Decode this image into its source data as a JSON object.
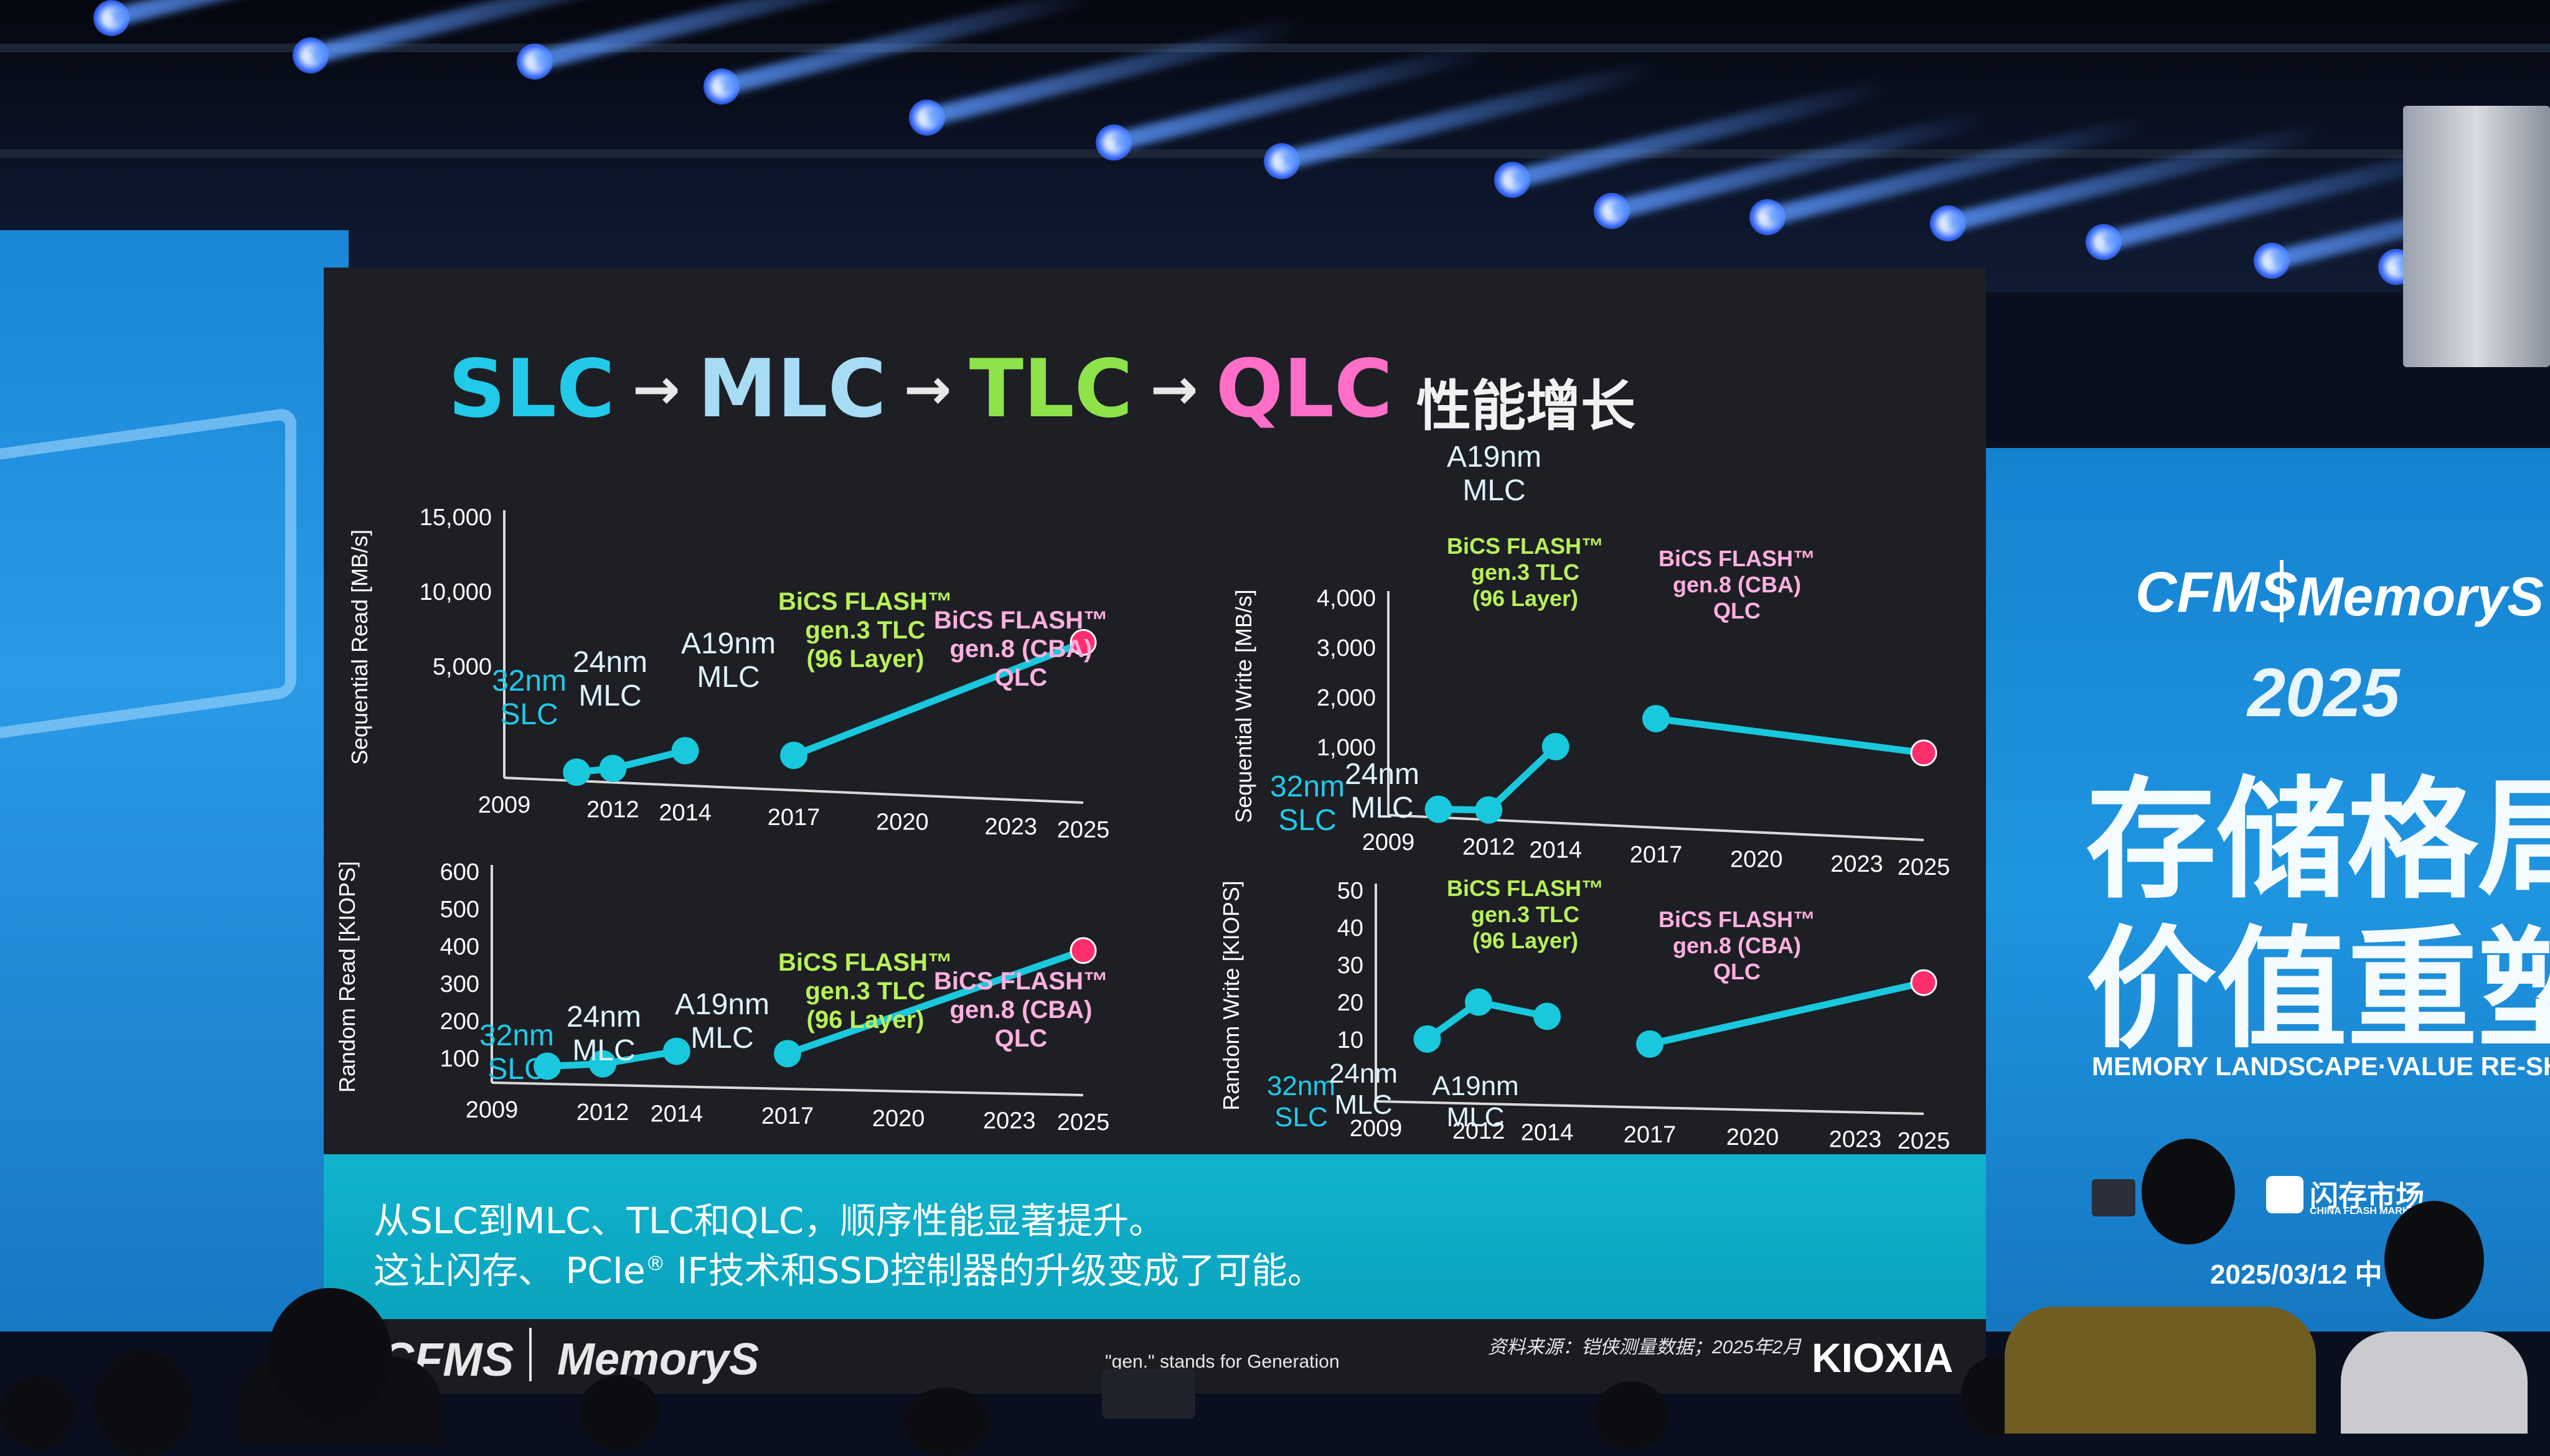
{
  "slide": {
    "title": {
      "steps": [
        {
          "label": "SLC",
          "color": "#22c9e8"
        },
        {
          "label": "MLC",
          "color": "#a8dcf5"
        },
        {
          "label": "TLC",
          "color": "#8ee34a"
        },
        {
          "label": "QLC",
          "color": "#ff6ec7"
        }
      ],
      "arrow": "→",
      "suffix": "性能增长"
    },
    "caption": {
      "line1": "从SLC到MLC、TLC和QLC，顺序性能显著提升。",
      "line2_a": "这让闪存、 PCIe",
      "line2_sup": "®",
      "line2_b": " IF技术和SSD控制器的升级变成了可能。"
    },
    "footer": {
      "cfms_logo": "CFMS",
      "memorys_logo": "MemoryS",
      "gen_note": "\"gen.\" stands for Generation",
      "source": "资料来源：铠侠测量数据；2025年2月",
      "kioxia": "KIOXIA"
    }
  },
  "right_screen": {
    "cfms": "CFMS",
    "memorys": "MemoryS",
    "year": "2025",
    "headline1": "存储格局",
    "headline2": "价值重塑",
    "subtitle": "MEMORY LANDSCAPE·VALUE RE-SHA",
    "brand_cn": "闪存市场",
    "brand_en": "CHINA FLASH MARKET",
    "date": "2025/03/12  中"
  },
  "colors": {
    "line": "#19c8dc",
    "endpoint": "#ff2f6e",
    "tlc_annotation": "#b8f05a",
    "qlc_annotation": "#ffb0e0",
    "slc_annotation": "#22c9e8",
    "mlc_annotation": "#dff3ff",
    "caption_bg": "#0aa7c2"
  },
  "chart_data": [
    {
      "type": "line",
      "id": "seq-read",
      "ylabel": "Sequential Read [MB/s]",
      "yticks": [
        "15,000",
        "10,000",
        "5,000"
      ],
      "x_ticks": [
        "2009",
        "2012",
        "2014",
        "2017",
        "2020",
        "2023",
        "2025"
      ],
      "x_range": [
        2009,
        2025
      ],
      "ylim": [
        0,
        15000
      ],
      "series": [
        {
          "points": [
            [
              2011,
              500
            ],
            [
              2012,
              800
            ],
            [
              2014,
              2000
            ]
          ]
        },
        {
          "points": [
            [
              2017,
              2000
            ],
            [
              2025,
              9200
            ]
          ]
        }
      ],
      "annotations": [
        {
          "lines": [
            "32nm",
            "SLC"
          ],
          "kind": "slc"
        },
        {
          "lines": [
            "24nm",
            "MLC"
          ],
          "kind": "mlc"
        },
        {
          "lines": [
            "A19nm",
            "MLC"
          ],
          "kind": "mlc"
        },
        {
          "lines": [
            "BiCS FLASH™",
            "gen.3 TLC",
            "(96 Layer)"
          ],
          "kind": "tlc"
        },
        {
          "lines": [
            "BiCS FLASH™",
            "gen.8 (CBA)",
            "QLC"
          ],
          "kind": "qlc"
        }
      ]
    },
    {
      "type": "line",
      "id": "seq-write",
      "ylabel": "Sequential Write [MB/s]",
      "yticks": [
        "4,000",
        "3,000",
        "2,000",
        "1,000"
      ],
      "x_ticks": [
        "2009",
        "2012",
        "2014",
        "2017",
        "2020",
        "2023",
        "2025"
      ],
      "x_range": [
        2009,
        2025
      ],
      "ylim": [
        0,
        4000
      ],
      "series": [
        {
          "points": [
            [
              2010.5,
              150
            ],
            [
              2012,
              180
            ],
            [
              2014,
              1400
            ]
          ]
        },
        {
          "points": [
            [
              2017,
              2000
            ],
            [
              2025,
              1600
            ]
          ]
        }
      ],
      "annotations": [
        {
          "lines": [
            "32nm",
            "SLC"
          ],
          "kind": "slc"
        },
        {
          "lines": [
            "24nm",
            "MLC"
          ],
          "kind": "mlc"
        },
        {
          "lines": [
            "A19nm",
            "MLC"
          ],
          "kind": "mlc"
        },
        {
          "lines": [
            "BiCS FLASH™",
            "gen.3 TLC",
            "(96 Layer)"
          ],
          "kind": "tlc"
        },
        {
          "lines": [
            "BiCS FLASH™",
            "gen.8 (CBA)",
            "QLC"
          ],
          "kind": "qlc"
        }
      ]
    },
    {
      "type": "line",
      "id": "rand-read",
      "ylabel": "Random Read [KIOPS]",
      "yticks": [
        "600",
        "500",
        "400",
        "300",
        "200",
        "100"
      ],
      "x_ticks": [
        "2009",
        "2012",
        "2014",
        "2017",
        "2020",
        "2023",
        "2025"
      ],
      "x_range": [
        2009,
        2025
      ],
      "ylim": [
        0,
        600
      ],
      "series": [
        {
          "points": [
            [
              2010.5,
              50
            ],
            [
              2012,
              60
            ],
            [
              2014,
              100
            ]
          ]
        },
        {
          "points": [
            [
              2017,
              100
            ],
            [
              2025,
              410
            ]
          ]
        }
      ],
      "annotations": [
        {
          "lines": [
            "32nm",
            "SLC"
          ],
          "kind": "slc"
        },
        {
          "lines": [
            "24nm",
            "MLC"
          ],
          "kind": "mlc"
        },
        {
          "lines": [
            "A19nm",
            "MLC"
          ],
          "kind": "mlc"
        },
        {
          "lines": [
            "BiCS FLASH™",
            "gen.3 TLC",
            "(96 Layer)"
          ],
          "kind": "tlc"
        },
        {
          "lines": [
            "BiCS FLASH™",
            "gen.8 (CBA)",
            "QLC"
          ],
          "kind": "qlc"
        }
      ]
    },
    {
      "type": "line",
      "id": "rand-write",
      "ylabel": "Random Write [KIOPS]",
      "yticks": [
        "50",
        "40",
        "30",
        "20",
        "10"
      ],
      "x_ticks": [
        "2009",
        "2012",
        "2014",
        "2017",
        "2020",
        "2023",
        "2025"
      ],
      "x_range": [
        2009,
        2025
      ],
      "ylim": [
        0,
        50
      ],
      "series": [
        {
          "points": [
            [
              2010.5,
              15
            ],
            [
              2012,
              24
            ],
            [
              2014,
              21
            ]
          ]
        },
        {
          "points": [
            [
              2017,
              15
            ],
            [
              2025,
              31
            ]
          ]
        }
      ],
      "annotations": [
        {
          "lines": [
            "32nm",
            "SLC"
          ],
          "kind": "slc"
        },
        {
          "lines": [
            "24nm",
            "MLC"
          ],
          "kind": "mlc"
        },
        {
          "lines": [
            "A19nm",
            "MLC"
          ],
          "kind": "mlc"
        },
        {
          "lines": [
            "BiCS FLASH™",
            "gen.3 TLC",
            "(96 Layer)"
          ],
          "kind": "tlc"
        },
        {
          "lines": [
            "BiCS FLASH™",
            "gen.8 (CBA)",
            "QLC"
          ],
          "kind": "qlc"
        }
      ]
    }
  ]
}
